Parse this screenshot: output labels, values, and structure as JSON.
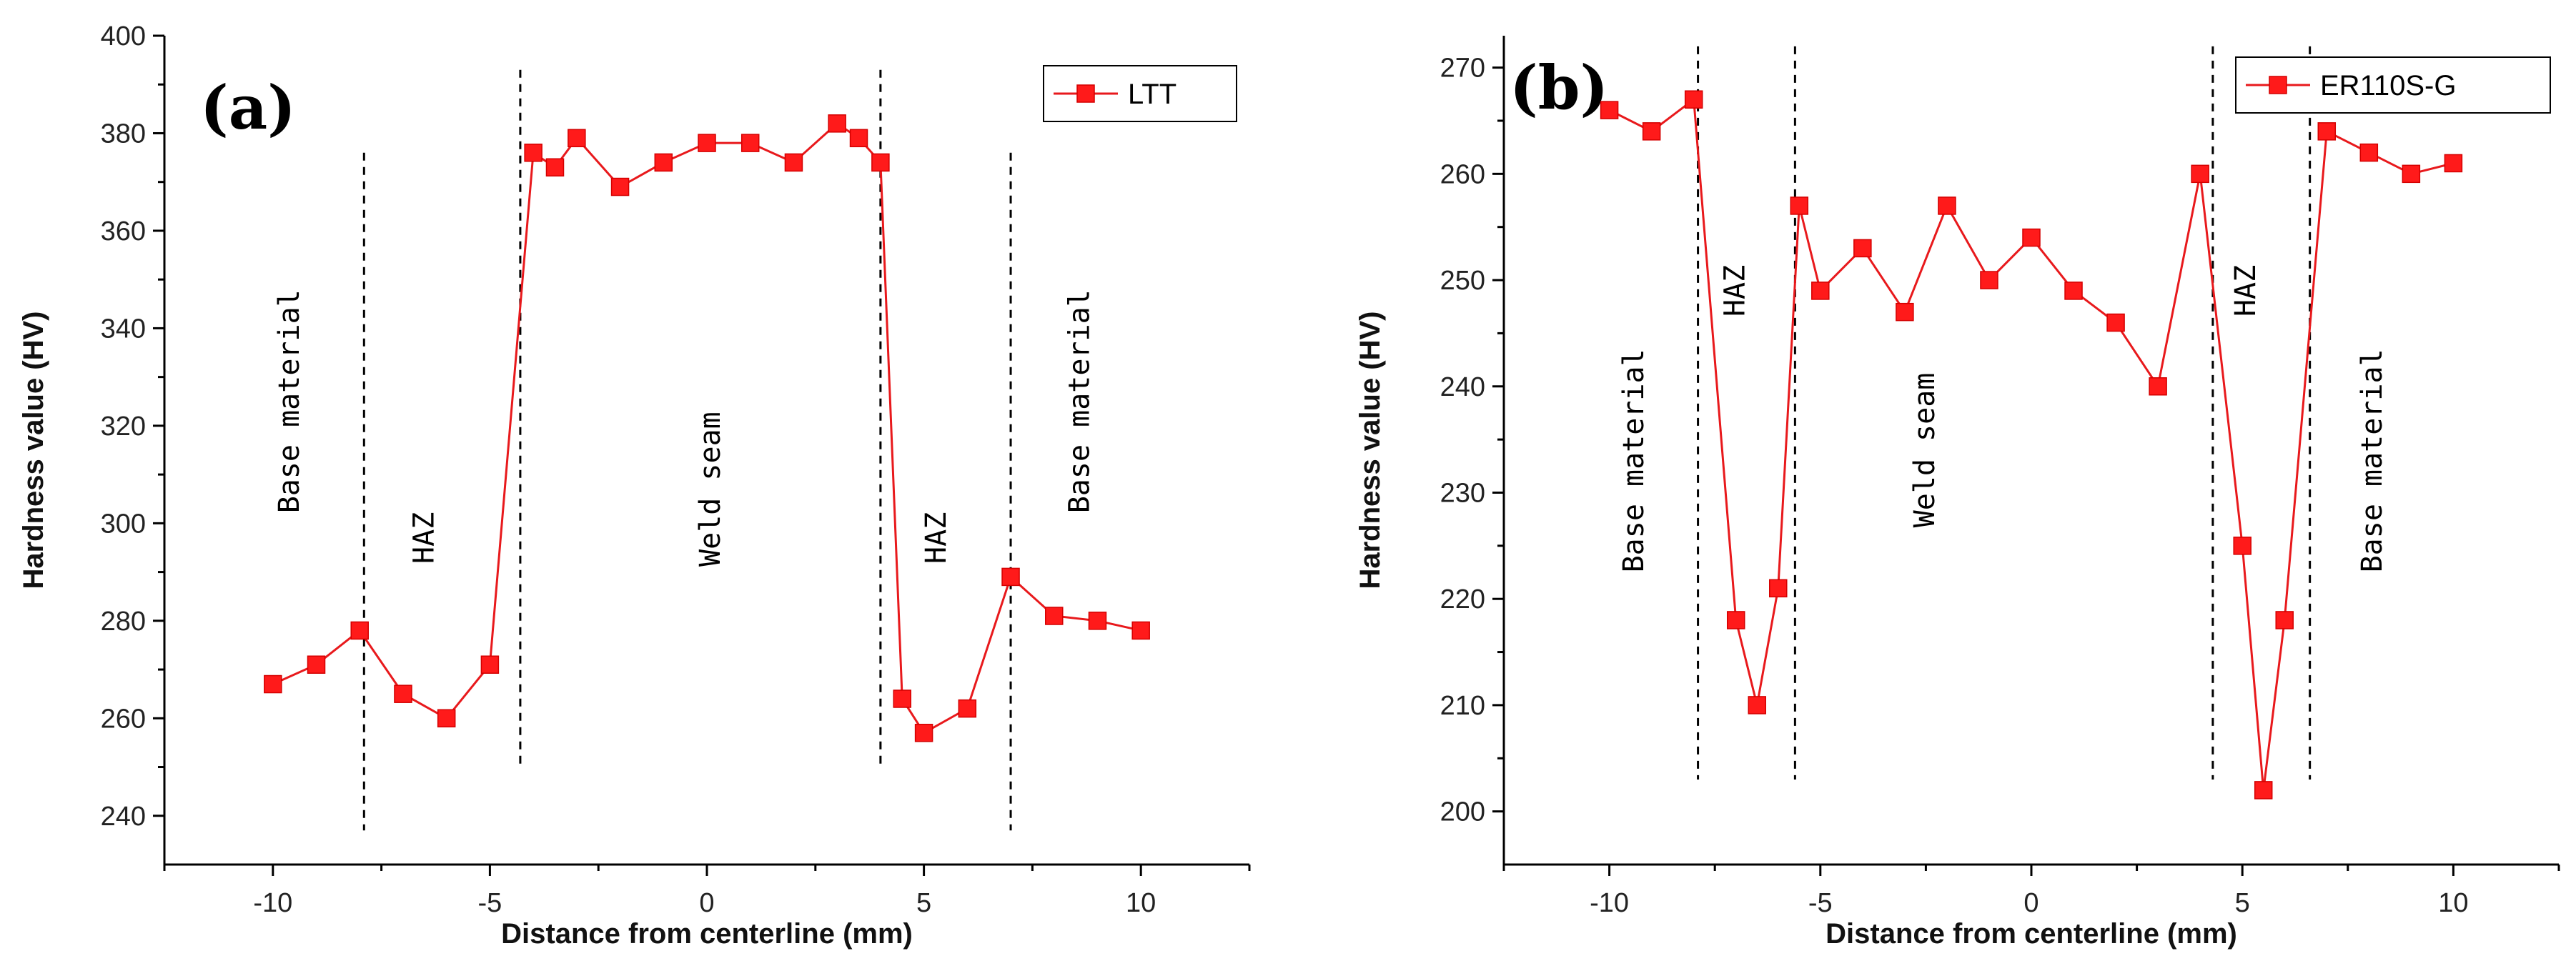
{
  "chart_data": [
    {
      "type": "line",
      "panel_label": "(a)",
      "xlabel": "Distance from centerline (mm)",
      "ylabel": "Hardness value (HV)",
      "xlim": [
        -12.5,
        12.5
      ],
      "ylim": [
        230,
        400
      ],
      "xticks": [
        -10,
        -5,
        0,
        5,
        10
      ],
      "xtick_labels": [
        "-10",
        "-5",
        "0",
        "5",
        "10"
      ],
      "yticks": [
        240,
        260,
        280,
        300,
        320,
        340,
        360,
        380,
        400
      ],
      "ytick_labels": [
        "240",
        "260",
        "280",
        "300",
        "320",
        "340",
        "360",
        "380",
        "400"
      ],
      "legend": {
        "label": "LTT",
        "position": "top-right"
      },
      "series": [
        {
          "name": "LTT",
          "color": "#e8191c",
          "x": [
            -10,
            -9,
            -8,
            -7,
            -6,
            -5,
            -4,
            -3.5,
            -3,
            -2,
            -1,
            0,
            1,
            2,
            3,
            3.5,
            4,
            4.5,
            5,
            6,
            7,
            8,
            9,
            10
          ],
          "y": [
            267,
            271,
            278,
            265,
            260,
            271,
            376,
            373,
            379,
            369,
            374,
            378,
            378,
            374,
            382,
            379,
            374,
            264,
            257,
            262,
            289,
            281,
            280,
            278
          ]
        }
      ],
      "dividers": [
        {
          "x": -7.9,
          "y_from": 237,
          "y_to": 376
        },
        {
          "x": -4.3,
          "y_from": 250,
          "y_to": 393
        },
        {
          "x": 4.0,
          "y_from": 250,
          "y_to": 393
        },
        {
          "x": 7.0,
          "y_from": 237,
          "y_to": 376
        }
      ],
      "regions": [
        {
          "text": "Base material",
          "x": -9.4,
          "y": 325
        },
        {
          "text": "HAZ",
          "x": -6.3,
          "y": 297
        },
        {
          "text": "Weld seam",
          "x": 0.3,
          "y": 307
        },
        {
          "text": "HAZ",
          "x": 5.5,
          "y": 297
        },
        {
          "text": "Base material",
          "x": 8.8,
          "y": 325
        }
      ]
    },
    {
      "type": "line",
      "panel_label": "(b)",
      "xlabel": "Distance from centerline (mm)",
      "ylabel": "Hardness value (HV)",
      "xlim": [
        -12.5,
        12.5
      ],
      "ylim": [
        195,
        273
      ],
      "xticks": [
        -10,
        -5,
        0,
        5,
        10
      ],
      "xtick_labels": [
        "-10",
        "-5",
        "0",
        "5",
        "10"
      ],
      "yticks": [
        200,
        210,
        220,
        230,
        240,
        250,
        260,
        270
      ],
      "ytick_labels": [
        "200",
        "210",
        "220",
        "230",
        "240",
        "250",
        "260",
        "270"
      ],
      "legend": {
        "label": "ER110S-G",
        "position": "top-right"
      },
      "series": [
        {
          "name": "ER110S-G",
          "color": "#e8191c",
          "x": [
            -10,
            -9,
            -8,
            -7,
            -6.5,
            -6,
            -5.5,
            -5,
            -4,
            -3,
            -2,
            -1,
            0,
            1,
            2,
            3,
            4,
            5,
            5.5,
            6,
            7,
            8,
            9,
            10
          ],
          "y": [
            266,
            264,
            267,
            218,
            210,
            221,
            257,
            249,
            253,
            247,
            257,
            250,
            254,
            249,
            246,
            240,
            260,
            225,
            202,
            218,
            264,
            262,
            260,
            261
          ]
        }
      ],
      "dividers": [
        {
          "x": -7.9,
          "y_from": 203,
          "y_to": 272
        },
        {
          "x": -5.6,
          "y_from": 203,
          "y_to": 272
        },
        {
          "x": 4.3,
          "y_from": 203,
          "y_to": 272
        },
        {
          "x": 6.6,
          "y_from": 203,
          "y_to": 272
        }
      ],
      "regions": [
        {
          "text": "Base material",
          "x": -9.2,
          "y": 233
        },
        {
          "text": "HAZ",
          "x": -6.8,
          "y": 249
        },
        {
          "text": "Weld seam",
          "x": -2.3,
          "y": 234
        },
        {
          "text": "HAZ",
          "x": 5.3,
          "y": 249
        },
        {
          "text": "Base material",
          "x": 8.3,
          "y": 233
        }
      ]
    }
  ]
}
